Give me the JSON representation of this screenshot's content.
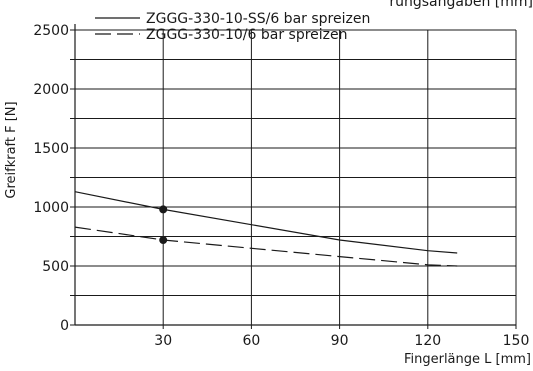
{
  "chart_data": {
    "type": "line",
    "title": "",
    "top_fragment": "rungsangaben [mm]",
    "xlabel": "Fingerlänge L [mm]",
    "ylabel": "Greifkraft F [N]",
    "xlim": [
      0,
      150
    ],
    "ylim": [
      0,
      2500
    ],
    "x_ticks": [
      30,
      60,
      90,
      120,
      150
    ],
    "y_ticks": [
      0,
      500,
      1000,
      1500,
      2000,
      2500
    ],
    "y_minor_gridlines": [
      250,
      750,
      1250,
      1750,
      2250
    ],
    "grid": true,
    "legend_position": "top",
    "series": [
      {
        "name": "ZGGG-330-10-SS/6 bar spreizen",
        "style": "solid",
        "color": "#1a1a1a",
        "x": [
          0,
          30,
          60,
          90,
          120,
          130
        ],
        "y": [
          1130,
          980,
          850,
          720,
          630,
          610
        ]
      },
      {
        "name": "ZGGG-330-10/6 bar spreizen",
        "style": "dashed",
        "color": "#1a1a1a",
        "x": [
          0,
          30,
          60,
          90,
          120,
          130
        ],
        "y": [
          830,
          720,
          650,
          580,
          510,
          500
        ]
      }
    ],
    "markers": [
      {
        "x": 30,
        "y": 980
      },
      {
        "x": 30,
        "y": 720
      }
    ]
  }
}
